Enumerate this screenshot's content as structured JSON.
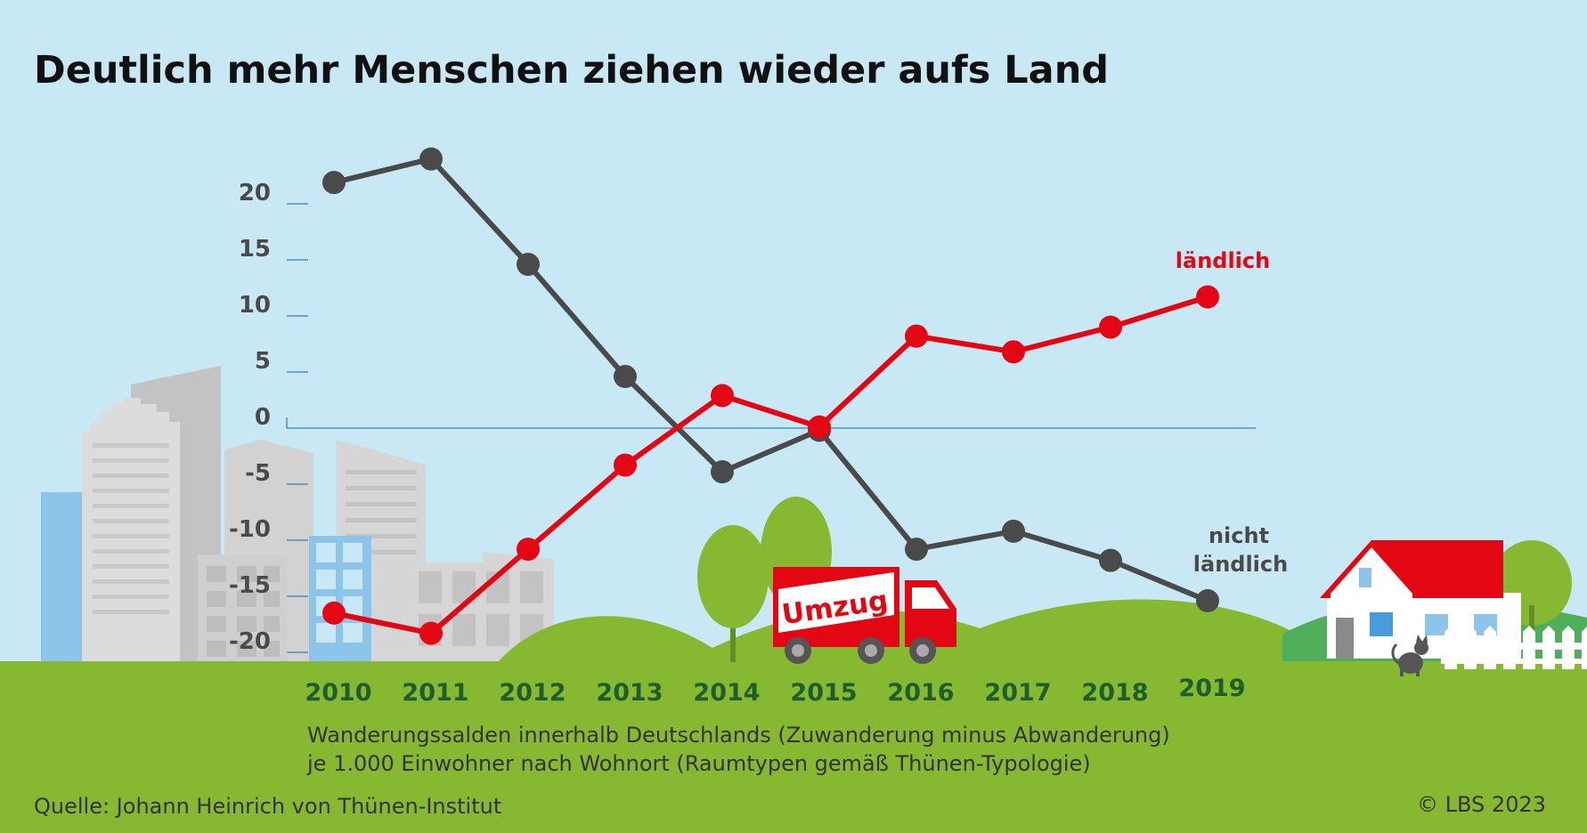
{
  "colors": {
    "sky": "#c9e8f6",
    "ground": "#86b832",
    "landlich": "#e30613",
    "nicht_landlich": "#4a4a4a",
    "zero_line": "#4a90c0"
  },
  "chart_data": {
    "type": "line",
    "title": "Deutlich mehr Menschen ziehen wieder aufs Land",
    "x": [
      "2010",
      "2011",
      "2012",
      "2013",
      "2014",
      "2015",
      "2016",
      "2017",
      "2018",
      "2019"
    ],
    "ylim": [
      -20,
      25
    ],
    "yticks": [
      "20",
      "15",
      "10",
      "5",
      "0",
      "-5",
      "-10",
      "-15",
      "-20"
    ],
    "ytick_values": [
      20,
      15,
      10,
      5,
      0,
      -5,
      -10,
      -15,
      -20
    ],
    "series": [
      {
        "name": "ländlich",
        "color": "#e30613",
        "values": [
          -16.5,
          -18.3,
          -10.8,
          -3.3,
          2.9,
          0.1,
          8.2,
          6.8,
          9.0,
          11.7
        ]
      },
      {
        "name_lines": [
          "nicht",
          "ländlich"
        ],
        "color": "#4a4a4a",
        "values": [
          21.9,
          24.0,
          14.6,
          4.6,
          -3.9,
          -0.2,
          -10.8,
          -9.2,
          -11.8,
          -15.4
        ]
      }
    ],
    "note_lines": [
      "Wanderungssalden innerhalb Deutschlands (Zuwanderung minus Abwanderung)",
      "je 1.000 Einwohner nach Wohnort (Raumtypen gemäß Thünen-Typologie)"
    ]
  },
  "truck": {
    "label": "Umzug"
  },
  "source": "Quelle: Johann Heinrich von Thünen-Institut",
  "copyright": "© LBS 2023"
}
